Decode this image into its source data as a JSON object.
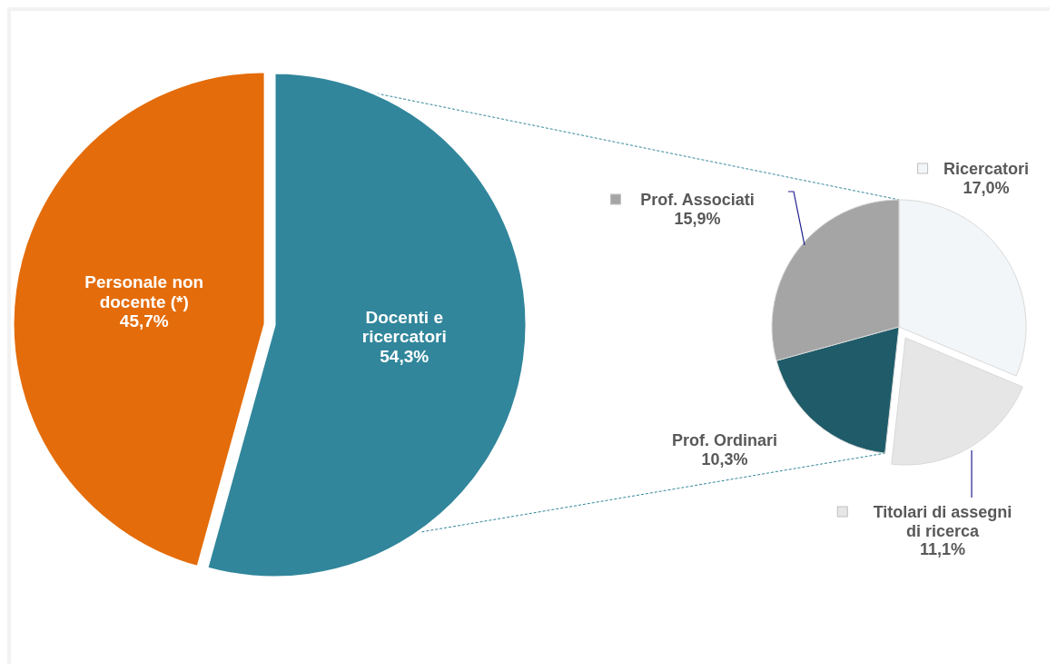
{
  "chart_data": [
    {
      "type": "pie",
      "categories": [
        "Personale non docente (*)",
        "Docenti e ricercatori"
      ],
      "values": [
        45.7,
        54.3
      ],
      "colors": [
        "#e46c0a",
        "#31869b"
      ],
      "value_labels": [
        "45,7%",
        "54,3%"
      ]
    },
    {
      "type": "pie",
      "categories": [
        "Ricercatori",
        "Titolari di assegni di ricerca",
        "Prof. Ordinari",
        "Prof. Associati"
      ],
      "values": [
        17.0,
        11.1,
        10.3,
        15.9
      ],
      "colors": [
        "#f3f6f8",
        "#e6e6e6",
        "#1f5b69",
        "#a5a5a5"
      ],
      "value_labels": [
        "17,0%",
        "11,1%",
        "10,3%",
        "15,9%"
      ],
      "legend": "bottom left"
    }
  ]
}
